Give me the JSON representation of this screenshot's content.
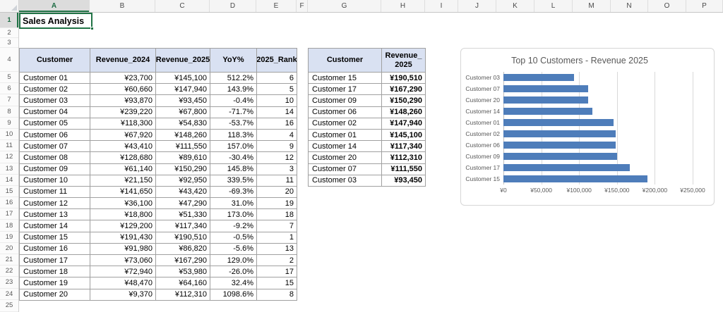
{
  "sheet": {
    "title_cell": "Sales Analysis",
    "column_letters": [
      "A",
      "B",
      "C",
      "D",
      "E",
      "F",
      "G",
      "H",
      "I",
      "J",
      "K",
      "L",
      "M",
      "N",
      "O",
      "P"
    ],
    "row_count": 25,
    "selected_column": "A",
    "selected_row": 1,
    "selected_cell": "A1"
  },
  "main_table": {
    "headers": [
      "Customer",
      "Revenue_2024",
      "Revenue_2025",
      "YoY%",
      "2025_Rank"
    ],
    "rows": [
      [
        "Customer 01",
        "¥23,700",
        "¥145,100",
        "512.2%",
        "6"
      ],
      [
        "Customer 02",
        "¥60,660",
        "¥147,940",
        "143.9%",
        "5"
      ],
      [
        "Customer 03",
        "¥93,870",
        "¥93,450",
        "-0.4%",
        "10"
      ],
      [
        "Customer 04",
        "¥239,220",
        "¥67,800",
        "-71.7%",
        "14"
      ],
      [
        "Customer 05",
        "¥118,300",
        "¥54,830",
        "-53.7%",
        "16"
      ],
      [
        "Customer 06",
        "¥67,920",
        "¥148,260",
        "118.3%",
        "4"
      ],
      [
        "Customer 07",
        "¥43,410",
        "¥111,550",
        "157.0%",
        "9"
      ],
      [
        "Customer 08",
        "¥128,680",
        "¥89,610",
        "-30.4%",
        "12"
      ],
      [
        "Customer 09",
        "¥61,140",
        "¥150,290",
        "145.8%",
        "3"
      ],
      [
        "Customer 10",
        "¥21,150",
        "¥92,950",
        "339.5%",
        "11"
      ],
      [
        "Customer 11",
        "¥141,650",
        "¥43,420",
        "-69.3%",
        "20"
      ],
      [
        "Customer 12",
        "¥36,100",
        "¥47,290",
        "31.0%",
        "19"
      ],
      [
        "Customer 13",
        "¥18,800",
        "¥51,330",
        "173.0%",
        "18"
      ],
      [
        "Customer 14",
        "¥129,200",
        "¥117,340",
        "-9.2%",
        "7"
      ],
      [
        "Customer 15",
        "¥191,430",
        "¥190,510",
        "-0.5%",
        "1"
      ],
      [
        "Customer 16",
        "¥91,980",
        "¥86,820",
        "-5.6%",
        "13"
      ],
      [
        "Customer 17",
        "¥73,060",
        "¥167,290",
        "129.0%",
        "2"
      ],
      [
        "Customer 18",
        "¥72,940",
        "¥53,980",
        "-26.0%",
        "17"
      ],
      [
        "Customer 19",
        "¥48,470",
        "¥64,160",
        "32.4%",
        "15"
      ],
      [
        "Customer 20",
        "¥9,370",
        "¥112,310",
        "1098.6%",
        "8"
      ]
    ]
  },
  "top10_table": {
    "headers": [
      "Customer",
      "Revenue_\n2025"
    ],
    "rows": [
      [
        "Customer 15",
        "¥190,510"
      ],
      [
        "Customer 17",
        "¥167,290"
      ],
      [
        "Customer 09",
        "¥150,290"
      ],
      [
        "Customer 06",
        "¥148,260"
      ],
      [
        "Customer 02",
        "¥147,940"
      ],
      [
        "Customer 01",
        "¥145,100"
      ],
      [
        "Customer 14",
        "¥117,340"
      ],
      [
        "Customer 20",
        "¥112,310"
      ],
      [
        "Customer 07",
        "¥111,550"
      ],
      [
        "Customer 03",
        "¥93,450"
      ]
    ]
  },
  "chart_data": {
    "type": "bar",
    "orientation": "horizontal",
    "title": "Top 10 Customers - Revenue 2025",
    "categories": [
      "Customer 03",
      "Customer 07",
      "Customer 20",
      "Customer 14",
      "Customer 01",
      "Customer 02",
      "Customer 06",
      "Customer 09",
      "Customer 17",
      "Customer 15"
    ],
    "values": [
      93450,
      111550,
      112310,
      117340,
      145100,
      147940,
      148260,
      150290,
      167290,
      190510
    ],
    "xlim": [
      0,
      250000
    ],
    "x_ticks": [
      "¥0",
      "¥50,000",
      "¥100,000",
      "¥150,000",
      "¥200,000",
      "¥250,000"
    ],
    "legend": "none",
    "grid": "vertical"
  },
  "colors": {
    "bar": "#4e7dba",
    "table_header_fill": "#d9e1f2",
    "selection_green": "#217346",
    "chart_text": "#595959"
  }
}
